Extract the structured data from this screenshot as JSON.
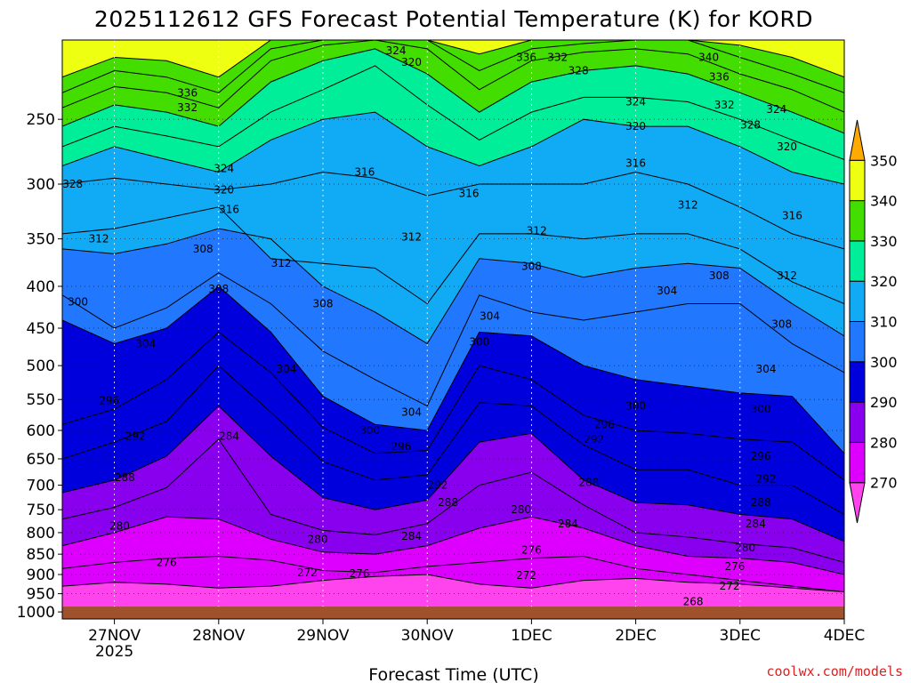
{
  "chart_data": {
    "type": "heatmap",
    "title": "2025112612 GFS Forecast Potential Temperature (K) for KORD",
    "xlabel": "Forecast Time (UTC)",
    "ylabel": "",
    "credit": "coolwx.com/models",
    "x_ticks": [
      {
        "label": "27NOV",
        "sub": "2025"
      },
      {
        "label": "28NOV",
        "sub": ""
      },
      {
        "label": "29NOV",
        "sub": ""
      },
      {
        "label": "30NOV",
        "sub": ""
      },
      {
        "label": "1DEC",
        "sub": ""
      },
      {
        "label": "2DEC",
        "sub": ""
      },
      {
        "label": "3DEC",
        "sub": ""
      },
      {
        "label": "4DEC",
        "sub": ""
      }
    ],
    "x_range_days": [
      26.5,
      34.0
    ],
    "y_ticks": [
      250,
      300,
      350,
      400,
      450,
      500,
      550,
      600,
      650,
      700,
      750,
      800,
      850,
      900,
      950,
      1000
    ],
    "y_range_hpa": [
      200,
      1020
    ],
    "y_scale": "log-pressure",
    "colorbar": {
      "labels": [
        270,
        280,
        290,
        300,
        310,
        320,
        330,
        340,
        350
      ],
      "bins": [
        {
          "min": 265,
          "max": 270,
          "color": "#ff44ee"
        },
        {
          "min": 270,
          "max": 280,
          "color": "#dd00ff"
        },
        {
          "min": 280,
          "max": 290,
          "color": "#8800ee"
        },
        {
          "min": 290,
          "max": 300,
          "color": "#0000dd"
        },
        {
          "min": 300,
          "max": 310,
          "color": "#2277ff"
        },
        {
          "min": 310,
          "max": 320,
          "color": "#11aaf5"
        },
        {
          "min": 320,
          "max": 330,
          "color": "#00ee99"
        },
        {
          "min": 330,
          "max": 340,
          "color": "#44dd00"
        },
        {
          "min": 340,
          "max": 350,
          "color": "#eeff11"
        },
        {
          "min": 350,
          "max": 360,
          "color": "#ffaa00"
        }
      ]
    },
    "ground_color": "#a0522d",
    "isentropes_k": [
      {
        "theta": 272,
        "p": [
          930,
          920,
          925,
          935,
          930,
          915,
          905,
          900,
          925,
          935,
          915,
          910,
          920,
          925,
          935,
          945
        ]
      },
      {
        "theta": 276,
        "p": [
          885,
          870,
          860,
          855,
          865,
          890,
          895,
          880,
          870,
          860,
          855,
          885,
          900,
          915,
          930,
          945
        ]
      },
      {
        "theta": 280,
        "p": [
          830,
          800,
          765,
          770,
          815,
          845,
          850,
          830,
          790,
          765,
          790,
          830,
          855,
          860,
          870,
          900
        ]
      },
      {
        "theta": 284,
        "p": [
          770,
          745,
          705,
          615,
          760,
          795,
          805,
          780,
          700,
          675,
          740,
          800,
          810,
          825,
          835,
          870
        ]
      },
      {
        "theta": 288,
        "p": [
          715,
          690,
          645,
          560,
          645,
          725,
          750,
          730,
          620,
          605,
          690,
          735,
          740,
          760,
          770,
          820
        ]
      },
      {
        "theta": 292,
        "p": [
          650,
          620,
          585,
          500,
          570,
          655,
          690,
          680,
          555,
          560,
          625,
          670,
          670,
          700,
          700,
          760
        ]
      },
      {
        "theta": 296,
        "p": [
          590,
          565,
          520,
          455,
          510,
          595,
          640,
          635,
          500,
          520,
          575,
          600,
          605,
          615,
          620,
          690
        ]
      },
      {
        "theta": 300,
        "p": [
          440,
          470,
          450,
          400,
          455,
          545,
          590,
          600,
          455,
          460,
          500,
          520,
          530,
          540,
          545,
          640
        ]
      },
      {
        "theta": 304,
        "p": [
          410,
          450,
          425,
          385,
          420,
          480,
          520,
          560,
          410,
          430,
          440,
          430,
          420,
          420,
          470,
          510
        ]
      },
      {
        "theta": 308,
        "p": [
          360,
          365,
          355,
          340,
          350,
          400,
          430,
          470,
          370,
          375,
          390,
          380,
          375,
          380,
          420,
          460
        ]
      },
      {
        "theta": 312,
        "p": [
          345,
          340,
          330,
          320,
          370,
          375,
          380,
          420,
          345,
          345,
          350,
          345,
          345,
          360,
          395,
          420
        ]
      },
      {
        "theta": 316,
        "p": [
          300,
          295,
          300,
          305,
          300,
          290,
          295,
          310,
          300,
          300,
          300,
          290,
          300,
          320,
          345,
          360
        ]
      },
      {
        "theta": 320,
        "p": [
          285,
          270,
          280,
          290,
          265,
          250,
          245,
          270,
          285,
          270,
          250,
          255,
          255,
          270,
          290,
          300
        ]
      },
      {
        "theta": 324,
        "p": [
          270,
          255,
          262,
          270,
          245,
          230,
          215,
          240,
          265,
          245,
          235,
          235,
          238,
          250,
          265,
          280
        ]
      },
      {
        "theta": 328,
        "p": [
          255,
          240,
          245,
          255,
          225,
          212,
          205,
          220,
          245,
          225,
          218,
          215,
          220,
          232,
          245,
          260
        ]
      },
      {
        "theta": 332,
        "p": [
          242,
          228,
          232,
          242,
          212,
          203,
          200,
          205,
          230,
          212,
          207,
          205,
          208,
          220,
          230,
          245
        ]
      },
      {
        "theta": 336,
        "p": [
          232,
          218,
          222,
          232,
          205,
          200,
          200,
          200,
          218,
          205,
          202,
          200,
          200,
          210,
          220,
          232
        ]
      },
      {
        "theta": 340,
        "p": [
          222,
          210,
          212,
          222,
          200,
          200,
          200,
          200,
          208,
          200,
          200,
          200,
          200,
          203,
          210,
          222
        ]
      }
    ],
    "isentrope_x_days": [
      26.5,
      27.0,
      27.5,
      28.0,
      28.5,
      29.0,
      29.5,
      30.0,
      30.5,
      31.0,
      31.5,
      32.0,
      32.5,
      33.0,
      33.5,
      34.0
    ],
    "contour_labels": [
      {
        "text": "336",
        "x": 27.7,
        "p": 232
      },
      {
        "text": "332",
        "x": 27.7,
        "p": 242
      },
      {
        "text": "328",
        "x": 26.6,
        "p": 300
      },
      {
        "text": "324",
        "x": 28.05,
        "p": 287
      },
      {
        "text": "320",
        "x": 28.05,
        "p": 305
      },
      {
        "text": "316",
        "x": 28.1,
        "p": 322
      },
      {
        "text": "312",
        "x": 26.85,
        "p": 350
      },
      {
        "text": "308",
        "x": 27.85,
        "p": 360
      },
      {
        "text": "312",
        "x": 28.6,
        "p": 375
      },
      {
        "text": "300",
        "x": 26.65,
        "p": 418
      },
      {
        "text": "308",
        "x": 28.0,
        "p": 403
      },
      {
        "text": "304",
        "x": 27.3,
        "p": 470
      },
      {
        "text": "304",
        "x": 28.65,
        "p": 505
      },
      {
        "text": "308",
        "x": 29.0,
        "p": 420
      },
      {
        "text": "296",
        "x": 26.95,
        "p": 552
      },
      {
        "text": "292",
        "x": 27.2,
        "p": 610
      },
      {
        "text": "284",
        "x": 28.1,
        "p": 610
      },
      {
        "text": "288",
        "x": 27.1,
        "p": 685
      },
      {
        "text": "280",
        "x": 27.05,
        "p": 785
      },
      {
        "text": "276",
        "x": 27.5,
        "p": 870
      },
      {
        "text": "280",
        "x": 28.95,
        "p": 815
      },
      {
        "text": "272",
        "x": 28.85,
        "p": 895
      },
      {
        "text": "276",
        "x": 29.35,
        "p": 898
      },
      {
        "text": "284",
        "x": 29.85,
        "p": 808
      },
      {
        "text": "296",
        "x": 29.75,
        "p": 628
      },
      {
        "text": "300",
        "x": 29.45,
        "p": 600
      },
      {
        "text": "304",
        "x": 29.85,
        "p": 570
      },
      {
        "text": "292",
        "x": 30.1,
        "p": 700
      },
      {
        "text": "288",
        "x": 30.2,
        "p": 735
      },
      {
        "text": "316",
        "x": 29.4,
        "p": 290
      },
      {
        "text": "312",
        "x": 29.85,
        "p": 348
      },
      {
        "text": "320",
        "x": 29.85,
        "p": 213
      },
      {
        "text": "324",
        "x": 29.7,
        "p": 206
      },
      {
        "text": "316",
        "x": 30.4,
        "p": 308
      },
      {
        "text": "308",
        "x": 31.0,
        "p": 378
      },
      {
        "text": "304",
        "x": 30.6,
        "p": 435
      },
      {
        "text": "300",
        "x": 30.5,
        "p": 468
      },
      {
        "text": "312",
        "x": 31.05,
        "p": 342
      },
      {
        "text": "280",
        "x": 30.9,
        "p": 750
      },
      {
        "text": "276",
        "x": 31.0,
        "p": 840
      },
      {
        "text": "272",
        "x": 30.95,
        "p": 902
      },
      {
        "text": "336",
        "x": 30.95,
        "p": 210
      },
      {
        "text": "332",
        "x": 31.25,
        "p": 210
      },
      {
        "text": "328",
        "x": 31.45,
        "p": 218
      },
      {
        "text": "284",
        "x": 31.35,
        "p": 780
      },
      {
        "text": "288",
        "x": 31.55,
        "p": 695
      },
      {
        "text": "292",
        "x": 31.6,
        "p": 615
      },
      {
        "text": "296",
        "x": 31.7,
        "p": 590
      },
      {
        "text": "300",
        "x": 32.0,
        "p": 560
      },
      {
        "text": "324",
        "x": 32.0,
        "p": 238
      },
      {
        "text": "320",
        "x": 32.0,
        "p": 255
      },
      {
        "text": "316",
        "x": 32.0,
        "p": 283
      },
      {
        "text": "304",
        "x": 32.3,
        "p": 405
      },
      {
        "text": "312",
        "x": 32.5,
        "p": 318
      },
      {
        "text": "308",
        "x": 32.8,
        "p": 388
      },
      {
        "text": "340",
        "x": 32.7,
        "p": 210
      },
      {
        "text": "336",
        "x": 32.8,
        "p": 222
      },
      {
        "text": "332",
        "x": 32.85,
        "p": 240
      },
      {
        "text": "328",
        "x": 33.1,
        "p": 254
      },
      {
        "text": "324",
        "x": 33.35,
        "p": 243
      },
      {
        "text": "320",
        "x": 33.45,
        "p": 270
      },
      {
        "text": "316",
        "x": 33.5,
        "p": 328
      },
      {
        "text": "312",
        "x": 33.45,
        "p": 388
      },
      {
        "text": "308",
        "x": 33.4,
        "p": 445
      },
      {
        "text": "304",
        "x": 33.25,
        "p": 505
      },
      {
        "text": "300",
        "x": 33.2,
        "p": 565
      },
      {
        "text": "296",
        "x": 33.2,
        "p": 645
      },
      {
        "text": "292",
        "x": 33.25,
        "p": 688
      },
      {
        "text": "288",
        "x": 33.2,
        "p": 735
      },
      {
        "text": "284",
        "x": 33.15,
        "p": 780
      },
      {
        "text": "280",
        "x": 33.05,
        "p": 835
      },
      {
        "text": "276",
        "x": 32.95,
        "p": 880
      },
      {
        "text": "272",
        "x": 32.9,
        "p": 930
      },
      {
        "text": "268",
        "x": 32.55,
        "p": 972
      }
    ]
  }
}
